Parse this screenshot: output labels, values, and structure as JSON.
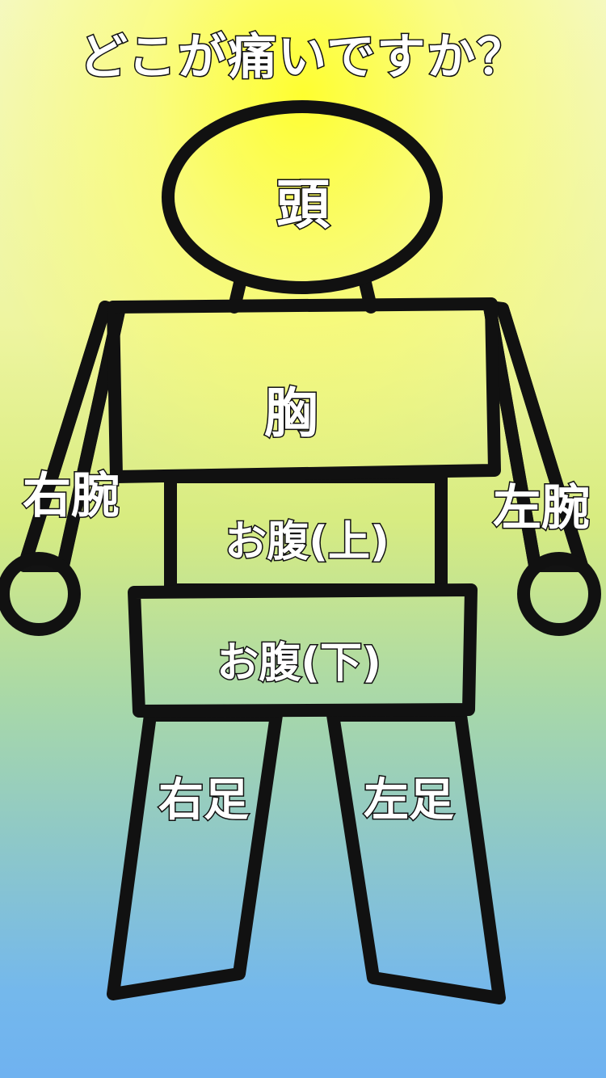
{
  "title": "どこが痛いですか？",
  "parts": {
    "head": "頭",
    "chest": "胸",
    "upper_abdomen": "お腹(上)",
    "lower_abdomen": "お腹(下)",
    "right_arm": "右腕",
    "left_arm": "左腕",
    "right_leg": "右足",
    "left_leg": "左足"
  },
  "colors": {
    "outline": "#111111",
    "label_fill": "#ffffff",
    "bg_top": "#ffff40",
    "bg_bottom": "#6fb2f0"
  }
}
